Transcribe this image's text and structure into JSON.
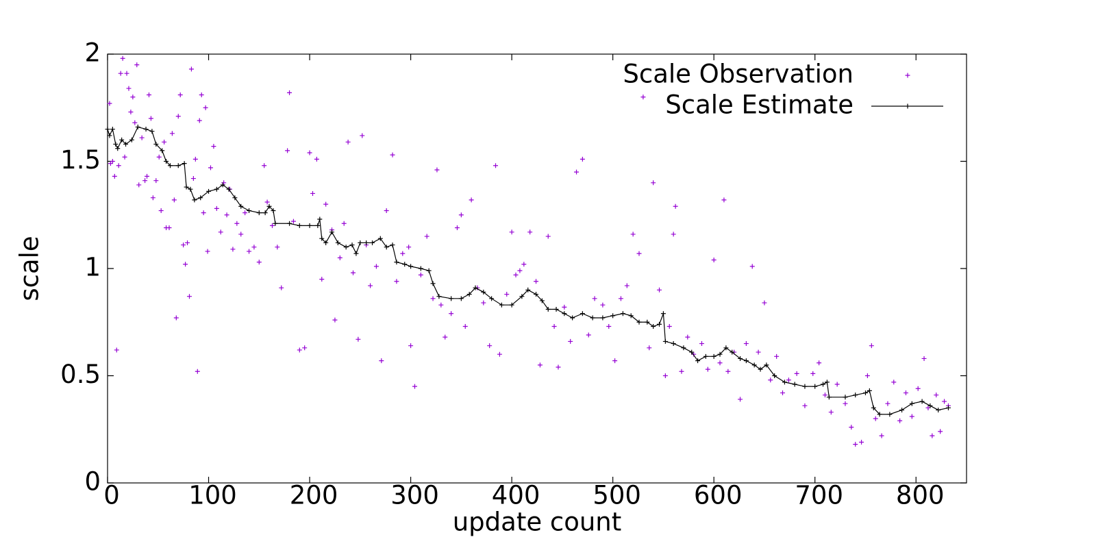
{
  "chart_data": {
    "type": "line",
    "xlabel": "update count",
    "ylabel": "scale",
    "xlim": [
      0,
      850
    ],
    "xticks": [
      0,
      100,
      200,
      300,
      400,
      500,
      600,
      700,
      800
    ],
    "ylim": [
      0,
      2
    ],
    "yticks": [
      0,
      0.5,
      1,
      1.5,
      2
    ],
    "legend": "top-right",
    "series": [
      {
        "name": "Scale Observation",
        "color": "#9400d3",
        "style": "points",
        "x": [
          2,
          3,
          5,
          7,
          9,
          11,
          13,
          15,
          17,
          19,
          21,
          23,
          25,
          27,
          29,
          31,
          34,
          37,
          39,
          41,
          43,
          45,
          48,
          51,
          53,
          56,
          58,
          61,
          64,
          66,
          68,
          70,
          72,
          75,
          77,
          79,
          81,
          83,
          85,
          87,
          89,
          91,
          93,
          95,
          97,
          99,
          102,
          105,
          108,
          112,
          115,
          118,
          121,
          124,
          128,
          132,
          136,
          140,
          145,
          150,
          155,
          158,
          163,
          168,
          172,
          178,
          180,
          184,
          190,
          195,
          200,
          203,
          207,
          212,
          216,
          222,
          225,
          230,
          234,
          238,
          243,
          248,
          252,
          256,
          260,
          266,
          271,
          276,
          282,
          286,
          292,
          298,
          300,
          304,
          310,
          316,
          322,
          326,
          330,
          334,
          340,
          346,
          350,
          354,
          360,
          366,
          372,
          378,
          384,
          388,
          395,
          400,
          404,
          408,
          412,
          418,
          424,
          428,
          436,
          442,
          446,
          452,
          458,
          464,
          470,
          476,
          482,
          490,
          496,
          502,
          508,
          514,
          520,
          526,
          530,
          536,
          540,
          546,
          552,
          556,
          560,
          562,
          568,
          574,
          580,
          588,
          594,
          600,
          606,
          610,
          614,
          620,
          626,
          632,
          638,
          644,
          650,
          656,
          662,
          668,
          674,
          682,
          690,
          698,
          704,
          710,
          716,
          722,
          730,
          736,
          740,
          746,
          752,
          756,
          760,
          766,
          772,
          778,
          784,
          790,
          796,
          802,
          808,
          812,
          816,
          820,
          824,
          828,
          832
        ],
        "values": [
          1.77,
          1.49,
          1.5,
          1.43,
          0.62,
          1.48,
          1.91,
          1.98,
          1.52,
          1.91,
          1.84,
          1.73,
          1.8,
          1.68,
          1.95,
          1.39,
          1.61,
          1.41,
          1.43,
          1.81,
          1.7,
          1.33,
          1.41,
          1.52,
          1.27,
          1.59,
          1.19,
          1.19,
          1.63,
          1.32,
          0.77,
          1.71,
          1.81,
          1.11,
          1.02,
          1.12,
          0.87,
          1.93,
          1.42,
          1.51,
          0.52,
          1.69,
          1.81,
          1.26,
          1.75,
          1.08,
          1.47,
          1.57,
          1.28,
          1.17,
          1.4,
          1.25,
          1.37,
          1.09,
          1.21,
          1.16,
          1.26,
          1.08,
          1.1,
          1.03,
          1.48,
          1.31,
          1.2,
          1.1,
          0.91,
          1.55,
          1.82,
          1.22,
          0.62,
          0.63,
          1.54,
          1.35,
          1.51,
          0.95,
          1.3,
          1.18,
          0.76,
          1.05,
          1.21,
          1.59,
          0.98,
          0.67,
          1.62,
          1.11,
          0.92,
          1.01,
          0.57,
          1.27,
          1.53,
          0.94,
          1.07,
          1.1,
          0.64,
          0.45,
          0.97,
          1.15,
          0.86,
          1.46,
          0.83,
          0.68,
          0.79,
          1.19,
          1.25,
          0.73,
          1.32,
          0.91,
          0.84,
          0.64,
          1.48,
          0.6,
          0.88,
          1.17,
          0.97,
          0.99,
          1.02,
          1.17,
          0.94,
          0.55,
          1.15,
          0.73,
          0.54,
          0.82,
          0.66,
          1.45,
          1.51,
          0.69,
          0.86,
          0.83,
          0.73,
          0.57,
          0.86,
          0.92,
          1.16,
          1.07,
          1.8,
          0.63,
          1.4,
          0.9,
          0.5,
          0.73,
          1.16,
          1.29,
          0.52,
          0.68,
          0.6,
          0.65,
          0.53,
          1.04,
          0.56,
          1.32,
          0.52,
          0.61,
          0.39,
          0.65,
          1.01,
          0.61,
          0.84,
          0.48,
          0.59,
          0.42,
          0.48,
          0.51,
          0.36,
          0.51,
          0.56,
          0.41,
          0.33,
          0.46,
          0.37,
          0.26,
          0.18,
          0.19,
          0.5,
          0.64,
          0.3,
          0.22,
          0.37,
          0.47,
          0.29,
          0.42,
          0.31,
          0.44,
          0.58,
          0.35,
          0.22,
          0.41,
          0.24,
          0.38,
          0.36
        ]
      },
      {
        "name": "Scale Estimate",
        "color": "#000000",
        "style": "linespoints",
        "x": [
          0,
          2,
          5,
          8,
          10,
          14,
          18,
          24,
          30,
          38,
          44,
          48,
          54,
          58,
          62,
          70,
          76,
          78,
          82,
          86,
          92,
          100,
          108,
          114,
          120,
          126,
          132,
          140,
          150,
          156,
          160,
          164,
          166,
          180,
          190,
          200,
          208,
          210,
          212,
          216,
          222,
          228,
          236,
          242,
          246,
          250,
          256,
          262,
          270,
          276,
          282,
          286,
          294,
          300,
          310,
          318,
          322,
          328,
          340,
          350,
          358,
          364,
          372,
          380,
          390,
          400,
          410,
          416,
          424,
          430,
          436,
          444,
          452,
          460,
          470,
          480,
          490,
          500,
          510,
          518,
          526,
          534,
          540,
          546,
          550,
          552,
          560,
          570,
          578,
          584,
          592,
          600,
          606,
          612,
          618,
          626,
          632,
          640,
          646,
          652,
          660,
          670,
          680,
          690,
          700,
          708,
          712,
          714,
          730,
          740,
          750,
          754,
          758,
          764,
          774,
          786,
          796,
          806,
          814,
          822,
          832
        ],
        "values": [
          1.65,
          1.62,
          1.65,
          1.58,
          1.56,
          1.6,
          1.58,
          1.6,
          1.66,
          1.65,
          1.64,
          1.58,
          1.55,
          1.5,
          1.48,
          1.48,
          1.49,
          1.38,
          1.37,
          1.32,
          1.33,
          1.36,
          1.37,
          1.39,
          1.37,
          1.33,
          1.29,
          1.27,
          1.26,
          1.26,
          1.29,
          1.27,
          1.21,
          1.21,
          1.2,
          1.2,
          1.2,
          1.23,
          1.14,
          1.12,
          1.17,
          1.12,
          1.1,
          1.11,
          1.07,
          1.12,
          1.12,
          1.12,
          1.14,
          1.1,
          1.11,
          1.03,
          1.02,
          1.01,
          1.0,
          0.99,
          0.93,
          0.87,
          0.86,
          0.86,
          0.88,
          0.91,
          0.89,
          0.86,
          0.83,
          0.83,
          0.87,
          0.9,
          0.88,
          0.85,
          0.81,
          0.81,
          0.79,
          0.77,
          0.79,
          0.77,
          0.77,
          0.78,
          0.79,
          0.78,
          0.75,
          0.75,
          0.73,
          0.74,
          0.79,
          0.66,
          0.65,
          0.63,
          0.61,
          0.57,
          0.59,
          0.59,
          0.6,
          0.63,
          0.61,
          0.58,
          0.57,
          0.55,
          0.53,
          0.55,
          0.5,
          0.47,
          0.46,
          0.45,
          0.45,
          0.46,
          0.47,
          0.4,
          0.4,
          0.41,
          0.42,
          0.43,
          0.35,
          0.32,
          0.32,
          0.34,
          0.37,
          0.38,
          0.36,
          0.34,
          0.35
        ]
      }
    ]
  }
}
